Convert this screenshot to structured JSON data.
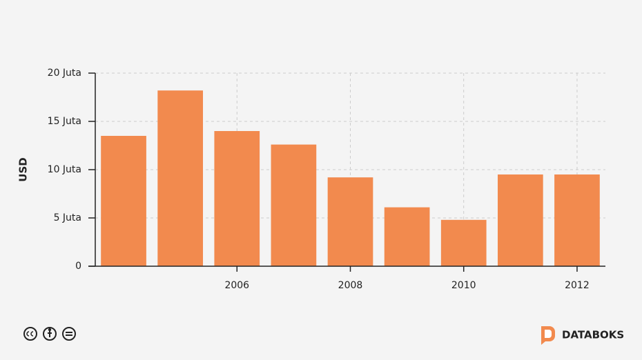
{
  "chart_data": {
    "type": "bar",
    "ylabel": "USD",
    "x": [
      2004,
      2005,
      2006,
      2007,
      2008,
      2009,
      2010,
      2011,
      2012
    ],
    "values": [
      13500000,
      18200000,
      14000000,
      12600000,
      9200000,
      6100000,
      4800000,
      9500000,
      9500000
    ],
    "color": "#f28a4e",
    "xlim": [
      2003.5,
      2012.5
    ],
    "xticks": [
      2006,
      2008,
      2010,
      2012
    ],
    "ylim": [
      0,
      20000000
    ],
    "yticks": [
      0,
      {
        "value": 5000000,
        "label": "5 Juta"
      },
      {
        "value": 10000000,
        "label": "10 Juta"
      },
      {
        "value": 15000000,
        "label": "15 Juta"
      },
      {
        "value": 20000000,
        "label": "20 Juta"
      }
    ],
    "grid": true
  },
  "brand": "DATABOKS"
}
